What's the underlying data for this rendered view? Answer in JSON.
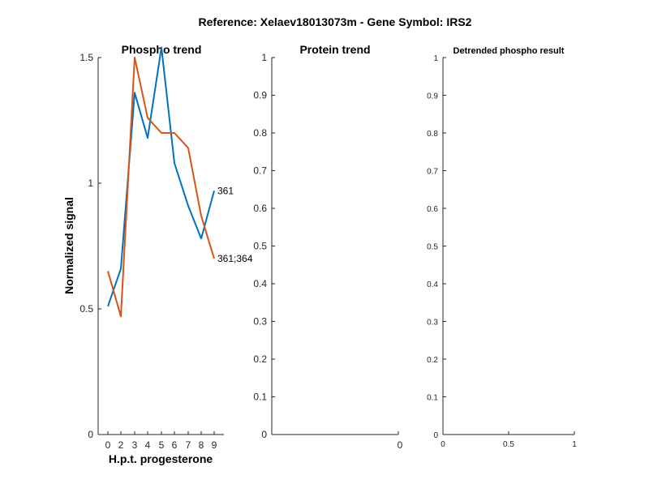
{
  "suptitle": "Reference:  Xelaev18013073m - Gene Symbol:  IRS2",
  "chart_data": [
    {
      "type": "line",
      "title": "Phospho trend",
      "xlabel": "H.p.t. progesterone",
      "ylabel": "Normalized signal",
      "x_tick_labels": [
        "0",
        "2",
        "3",
        "4",
        "5",
        "6",
        "7",
        "8",
        "9"
      ],
      "y_ticks": [
        0,
        0.5,
        1,
        1.5
      ],
      "y_tick_labels": [
        "0",
        "0.5",
        "1",
        "1.5"
      ],
      "ylim": [
        0,
        1.5
      ],
      "grid": false,
      "series": [
        {
          "name": "361",
          "color": "#0072BD",
          "values": [
            0.51,
            0.66,
            1.36,
            1.18,
            1.54,
            1.08,
            0.91,
            0.78,
            0.97
          ]
        },
        {
          "name": "361;364",
          "color": "#D95319",
          "values": [
            0.65,
            0.47,
            1.5,
            1.26,
            1.2,
            1.2,
            1.14,
            0.87,
            0.7
          ]
        }
      ]
    },
    {
      "type": "line",
      "title": "Protein trend",
      "x_tick_labels": [
        "0"
      ],
      "y_ticks": [
        0,
        0.1,
        0.2,
        0.3,
        0.4,
        0.5,
        0.6,
        0.7,
        0.8,
        0.9,
        1
      ],
      "y_tick_labels": [
        "0",
        "0.1",
        "0.2",
        "0.3",
        "0.4",
        "0.5",
        "0.6",
        "0.7",
        "0.8",
        "0.9",
        "1"
      ],
      "ylim": [
        0,
        1
      ],
      "grid": false,
      "series": []
    },
    {
      "type": "line",
      "title": "Detrended phospho result",
      "x_ticks": [
        0,
        0.5,
        1
      ],
      "x_tick_labels": [
        "0",
        "0.5",
        "1"
      ],
      "xlim": [
        0,
        1
      ],
      "y_ticks": [
        0,
        0.1,
        0.2,
        0.3,
        0.4,
        0.5,
        0.6,
        0.7,
        0.8,
        0.9,
        1
      ],
      "y_tick_labels": [
        "0",
        "0.1",
        "0.2",
        "0.3",
        "0.4",
        "0.5",
        "0.6",
        "0.7",
        "0.8",
        "0.9",
        "1"
      ],
      "ylim": [
        0,
        1
      ],
      "grid": false,
      "series": []
    }
  ]
}
